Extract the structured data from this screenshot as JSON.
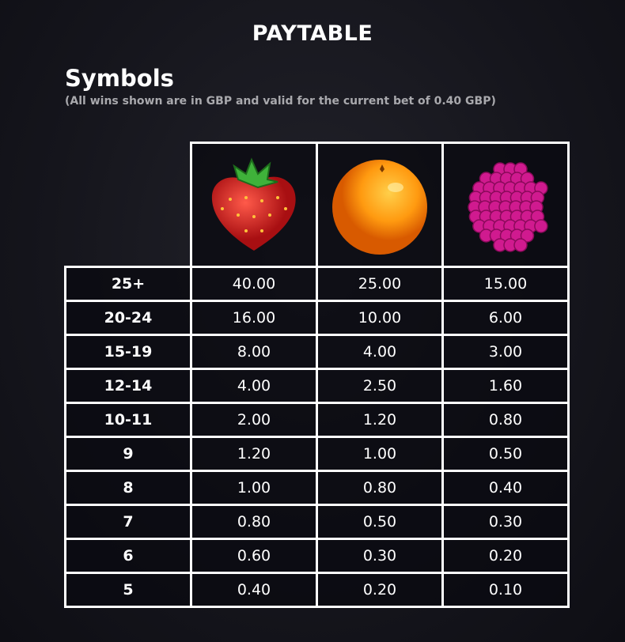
{
  "title": "PAYTABLE",
  "section": {
    "heading": "Symbols",
    "subtitle": "(All wins shown are in GBP and valid for the current bet of 0.40 GBP)"
  },
  "symbols": [
    "strawberry-icon",
    "orange-icon",
    "raspberry-icon"
  ],
  "rows": [
    {
      "label": "25+",
      "values": [
        "40.00",
        "25.00",
        "15.00"
      ]
    },
    {
      "label": "20-24",
      "values": [
        "16.00",
        "10.00",
        "6.00"
      ]
    },
    {
      "label": "15-19",
      "values": [
        "8.00",
        "4.00",
        "3.00"
      ]
    },
    {
      "label": "12-14",
      "values": [
        "4.00",
        "2.50",
        "1.60"
      ]
    },
    {
      "label": "10-11",
      "values": [
        "2.00",
        "1.20",
        "0.80"
      ]
    },
    {
      "label": "9",
      "values": [
        "1.20",
        "1.00",
        "0.50"
      ]
    },
    {
      "label": "8",
      "values": [
        "1.00",
        "0.80",
        "0.40"
      ]
    },
    {
      "label": "7",
      "values": [
        "0.80",
        "0.50",
        "0.30"
      ]
    },
    {
      "label": "6",
      "values": [
        "0.60",
        "0.30",
        "0.20"
      ]
    },
    {
      "label": "5",
      "values": [
        "0.40",
        "0.20",
        "0.10"
      ]
    }
  ]
}
